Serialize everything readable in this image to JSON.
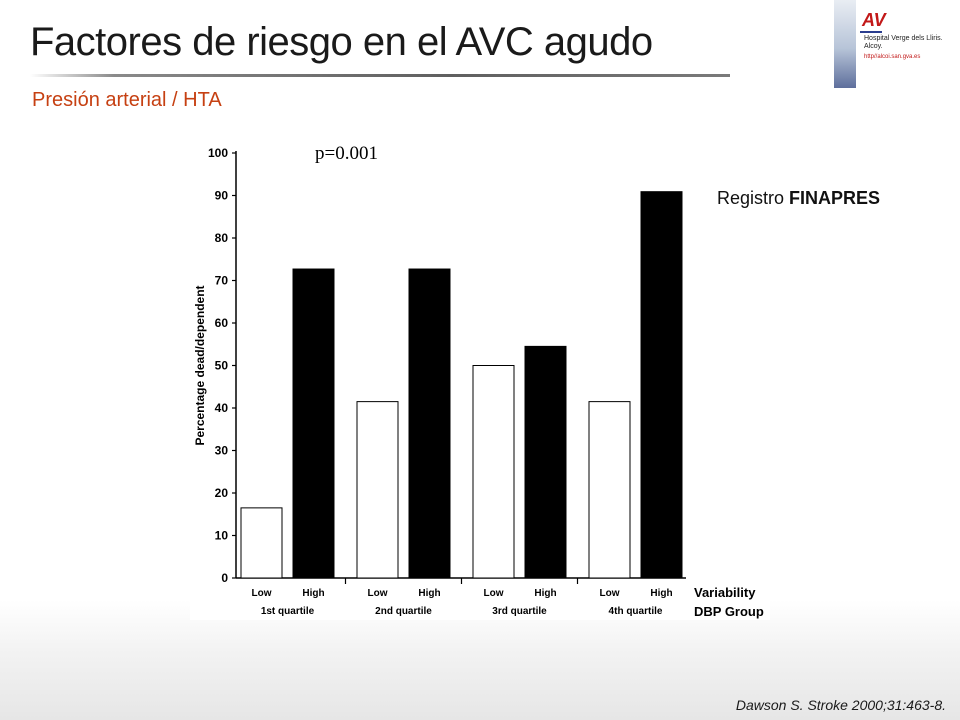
{
  "slide": {
    "title": "Factores de riesgo en el AVC agudo",
    "subtitle": "Presión arterial / HTA",
    "note_prefix": "Registro",
    "note_bold": "FINAPRES",
    "citation": "Dawson S. Stroke 2000;31:463-8."
  },
  "logo": {
    "mark": "AV",
    "hospital_name": "Hospital Verge dels Lliris. Alcoy.",
    "url": "http//alcoi.san.gva.es"
  },
  "colors": {
    "title": "#1a1a1a",
    "subtitle": "#c64012",
    "bar_low": "#ffffff",
    "bar_high": "#000000"
  },
  "chart_data": {
    "type": "bar",
    "annotation": "p=0.001",
    "ylabel": "Percentage dead/dependent",
    "xlabel_line1": "Variability",
    "xlabel_line2": "DBP Group",
    "ylim": [
      0,
      100
    ],
    "yticks": [
      0,
      10,
      20,
      30,
      40,
      50,
      60,
      70,
      80,
      90,
      100
    ],
    "groups": [
      "1st quartile",
      "2nd quartile",
      "3rd quartile",
      "4th quartile"
    ],
    "bar_labels": [
      "Low",
      "High"
    ],
    "series": [
      {
        "key": "Low",
        "values": [
          16.5,
          41.5,
          50,
          41.5
        ]
      },
      {
        "key": "High",
        "values": [
          72.7,
          72.7,
          54.5,
          90.9
        ]
      }
    ]
  }
}
